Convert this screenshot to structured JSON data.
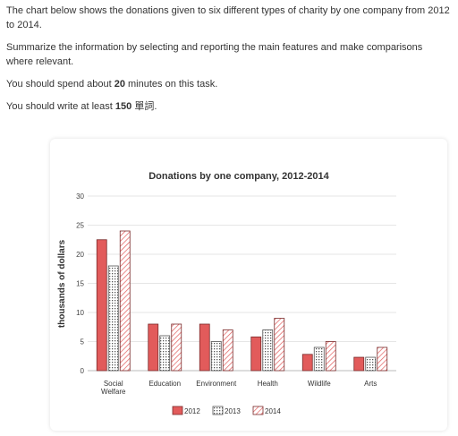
{
  "prompt": {
    "line1": "The chart below shows the donations given to six different types of charity by one company from 2012 to 2014.",
    "line2": "Summarize the information by selecting and reporting the main features and make comparisons where relevant.",
    "line3_pre": "You should spend about ",
    "line3_bold": "20",
    "line3_post": " minutes on this task.",
    "line4_pre": "You should write at least ",
    "line4_bold": "150",
    "line4_post": " 單詞."
  },
  "chart_data": {
    "type": "bar",
    "title": "Donations by one company, 2012-2014",
    "ylabel": "thousands of dollars",
    "xlabel": "",
    "ylim": [
      0,
      30
    ],
    "yticks": [
      0,
      5,
      10,
      15,
      20,
      25,
      30
    ],
    "grid": true,
    "legend_position": "bottom",
    "categories": [
      [
        "Social",
        "Welfare"
      ],
      [
        "Education"
      ],
      [
        "Environment"
      ],
      [
        "Health"
      ],
      [
        "Wildlife"
      ],
      [
        "Arts"
      ]
    ],
    "series": [
      {
        "name": "2012",
        "values": [
          22.5,
          8,
          8,
          5.8,
          2.8,
          2.3
        ],
        "color": "#e25b5b",
        "pattern": "solid"
      },
      {
        "name": "2013",
        "values": [
          18,
          6,
          5,
          7,
          4,
          2.3
        ],
        "color": "#e25b5b",
        "pattern": "dots"
      },
      {
        "name": "2014",
        "values": [
          24,
          8,
          7,
          9,
          5,
          4
        ],
        "color": "#e25b5b",
        "pattern": "diagonal"
      }
    ]
  }
}
